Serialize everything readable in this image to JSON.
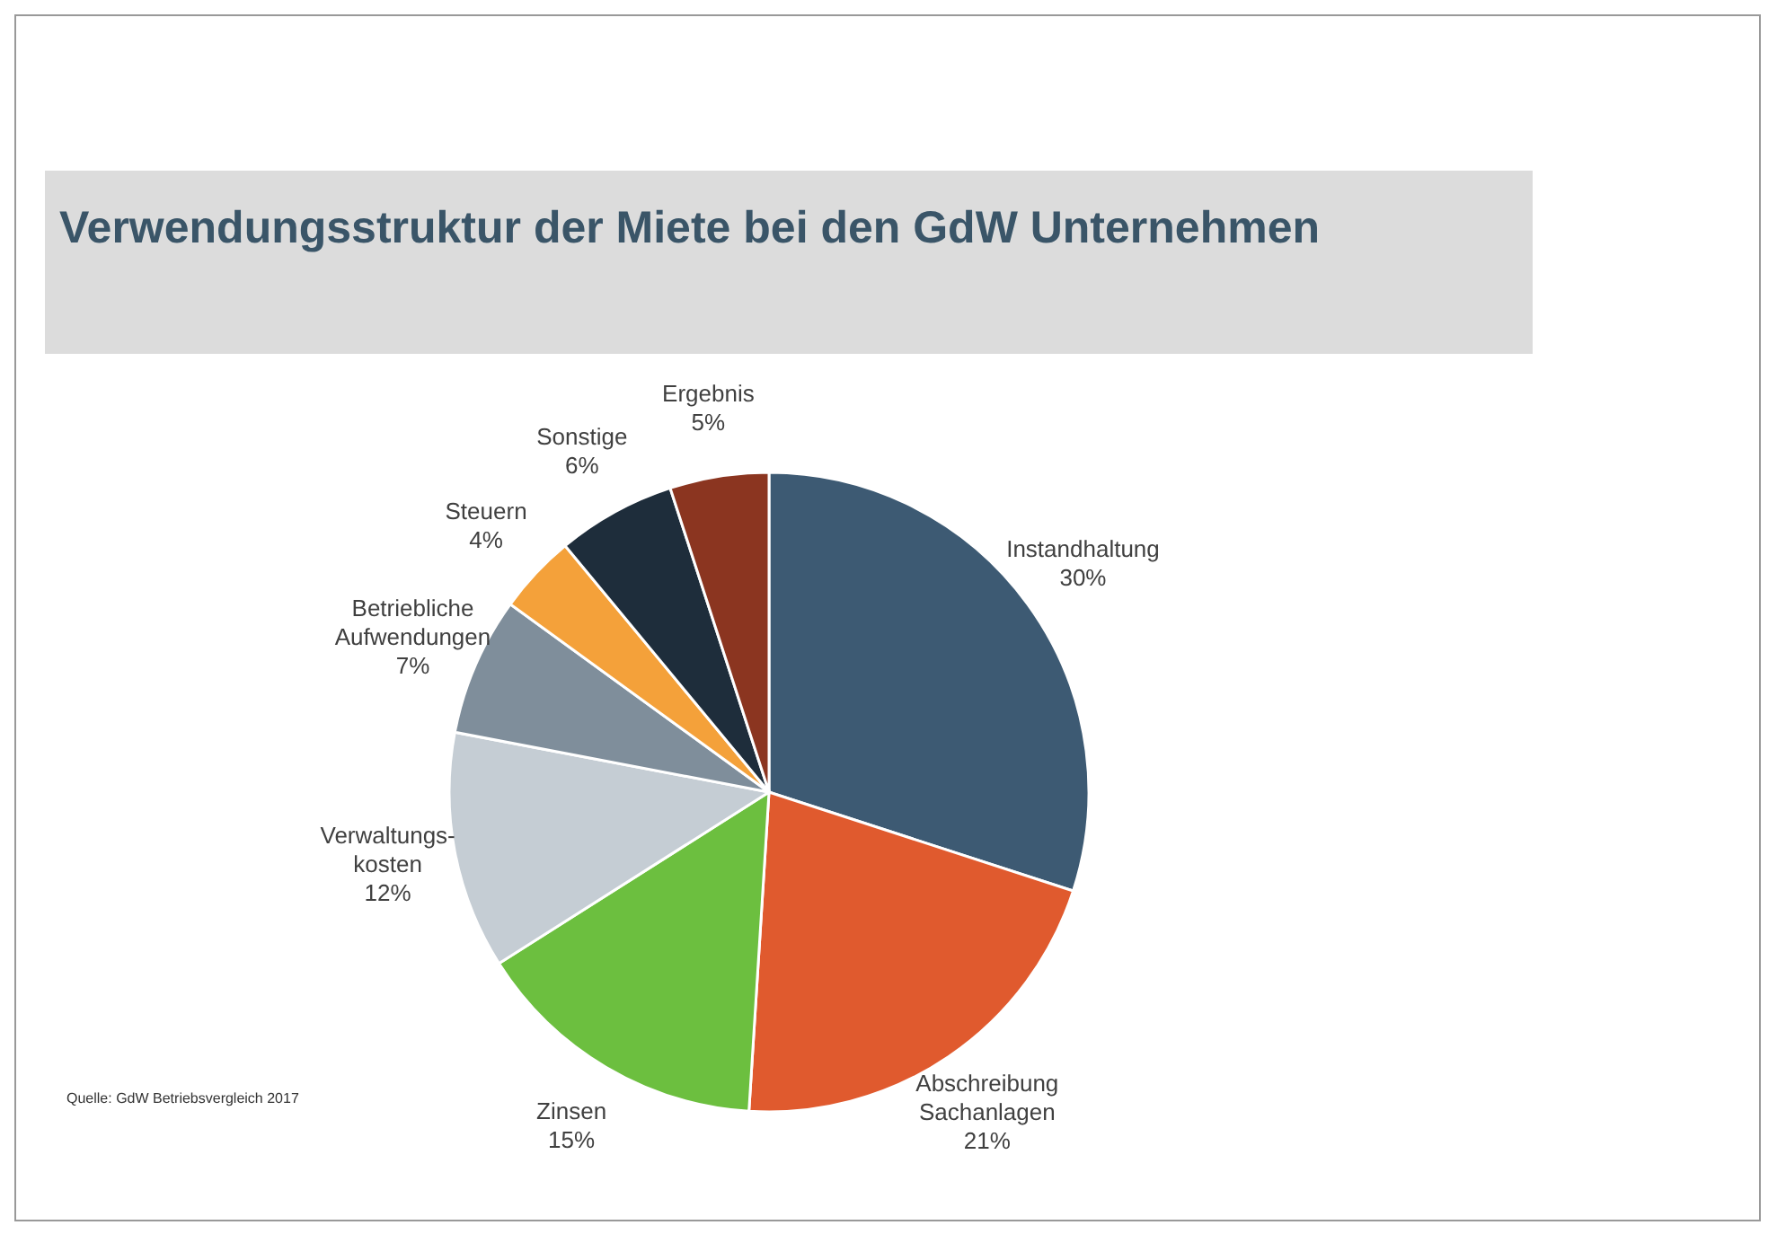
{
  "chart_data": {
    "type": "pie",
    "title": "Verwendungsstruktur der Miete bei den GdW Unternehmen",
    "categories": [
      "Instandhaltung",
      "Abschreibung\nSachanlagen",
      "Zinsen",
      "Verwaltungs-\nkosten",
      "Betriebliche\nAufwendungen",
      "Steuern",
      "Sonstige",
      "Ergebnis"
    ],
    "values": [
      30,
      21,
      15,
      12,
      7,
      4,
      6,
      5
    ],
    "colors": [
      "#3d5a73",
      "#e05a2e",
      "#6cbf3f",
      "#c5cdd4",
      "#7f8e9b",
      "#f4a13a",
      "#1e2d3b",
      "#8b3520"
    ],
    "value_labels": [
      "30%",
      "21%",
      "15%",
      "12%",
      "7%",
      "4%",
      "6%",
      "5%"
    ],
    "legend": false,
    "annotations": [
      "Quelle: GdW Betriebsvergleich 2017"
    ]
  }
}
